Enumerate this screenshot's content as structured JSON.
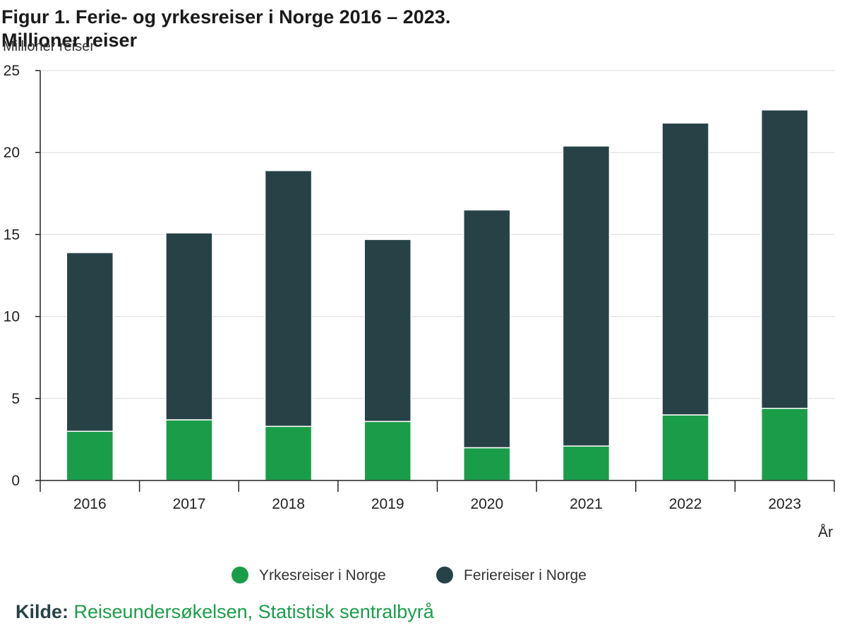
{
  "title_line1": "Figur 1. Ferie- og yrkesreiser i Norge 2016 – 2023.",
  "title_line2": "Millioner reiser",
  "source_key": "Kilde:",
  "source_text": "Reiseundersøkelsen, Statistisk sentralbyrå",
  "chart_data": {
    "type": "bar",
    "stacked": true,
    "categories": [
      "2016",
      "2017",
      "2018",
      "2019",
      "2020",
      "2021",
      "2022",
      "2023"
    ],
    "series": [
      {
        "name": "Yrkesreiser i Norge",
        "color": "#1a9d49",
        "values": [
          3.0,
          3.7,
          3.3,
          3.6,
          2.0,
          2.1,
          4.0,
          4.4
        ]
      },
      {
        "name": "Feriereiser i Norge",
        "color": "#274247",
        "values": [
          10.9,
          11.4,
          15.6,
          11.1,
          14.5,
          18.3,
          17.8,
          18.2
        ]
      }
    ],
    "ylabel": "Millioner reiser",
    "xlabel": "År",
    "ylim": [
      0,
      25
    ],
    "yticks": [
      0,
      5,
      10,
      15,
      20,
      25
    ],
    "grid": true,
    "legend": "bottom"
  }
}
